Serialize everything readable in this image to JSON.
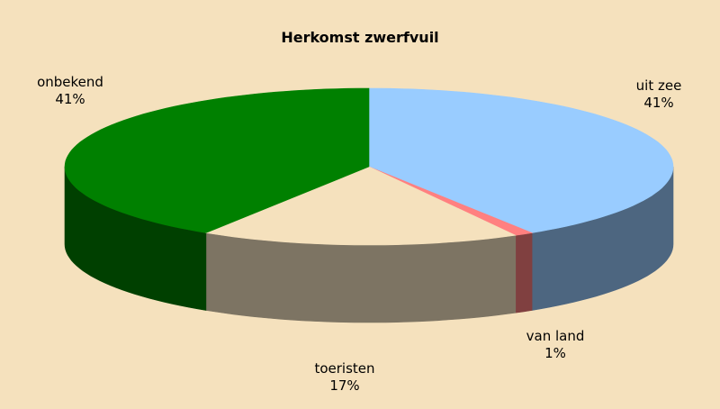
{
  "chart_data": {
    "type": "pie",
    "title": "Herkomst zwerfvuil",
    "three_d": true,
    "slices": [
      {
        "label": "uit zee",
        "value": 41,
        "display": "41%",
        "color": "#99ccff",
        "side_color": "#4d6680"
      },
      {
        "label": "van land",
        "value": 1,
        "display": "1%",
        "color": "#ff8080",
        "side_color": "#804040"
      },
      {
        "label": "toeristen",
        "value": 17,
        "display": "17%",
        "color": "#f5e1bd",
        "side_color": "#7d7463"
      },
      {
        "label": "onbekend",
        "value": 41,
        "display": "41%",
        "color": "#008000",
        "side_color": "#004000"
      }
    ]
  }
}
